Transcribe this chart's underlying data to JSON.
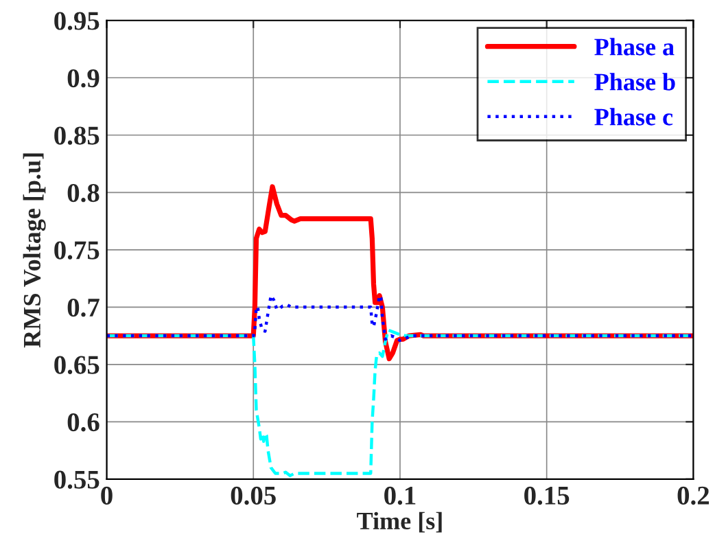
{
  "chart_data": {
    "type": "line",
    "xlabel": "Time [s]",
    "ylabel": "RMS Voltage [p.u]",
    "xlim": [
      0,
      0.2
    ],
    "xticks": [
      0,
      0.05,
      0.1,
      0.15,
      0.2
    ],
    "ylim": [
      0.55,
      0.95
    ],
    "yticks": [
      0.55,
      0.6,
      0.65,
      0.7,
      0.75,
      0.8,
      0.85,
      0.9,
      0.95
    ],
    "grid": true,
    "legend": "top right",
    "series": [
      {
        "name": "Phase a",
        "color": "#ff0000",
        "line_style": "solid",
        "x": [
          0,
          0.05,
          0.0505,
          0.051,
          0.052,
          0.053,
          0.054,
          0.0555,
          0.0565,
          0.058,
          0.0595,
          0.061,
          0.063,
          0.064,
          0.066,
          0.09,
          0.0905,
          0.091,
          0.0915,
          0.0925,
          0.093,
          0.094,
          0.095,
          0.0963,
          0.0975,
          0.099,
          0.1,
          0.101,
          0.103,
          0.107,
          0.108,
          0.2
        ],
        "values": [
          0.675,
          0.675,
          0.7,
          0.76,
          0.768,
          0.765,
          0.766,
          0.79,
          0.805,
          0.79,
          0.78,
          0.78,
          0.776,
          0.775,
          0.777,
          0.777,
          0.76,
          0.72,
          0.704,
          0.704,
          0.71,
          0.7,
          0.67,
          0.655,
          0.66,
          0.671,
          0.672,
          0.672,
          0.675,
          0.676,
          0.675,
          0.675
        ]
      },
      {
        "name": "Phase b",
        "color": "#00ffff",
        "line_style": "dashed",
        "x": [
          0,
          0.05,
          0.0505,
          0.051,
          0.052,
          0.0525,
          0.053,
          0.0535,
          0.054,
          0.0545,
          0.055,
          0.056,
          0.0575,
          0.06,
          0.061,
          0.0625,
          0.064,
          0.09,
          0.0905,
          0.091,
          0.0915,
          0.092,
          0.093,
          0.094,
          0.095,
          0.096,
          0.098,
          0.1,
          0.102,
          0.2
        ],
        "values": [
          0.675,
          0.675,
          0.65,
          0.61,
          0.595,
          0.585,
          0.59,
          0.583,
          0.59,
          0.588,
          0.575,
          0.56,
          0.555,
          0.555,
          0.556,
          0.553,
          0.555,
          0.555,
          0.6,
          0.62,
          0.645,
          0.657,
          0.66,
          0.657,
          0.67,
          0.68,
          0.678,
          0.676,
          0.675,
          0.675
        ]
      },
      {
        "name": "Phase c",
        "color": "#0000ff",
        "line_style": "dotted",
        "x": [
          0,
          0.05,
          0.0505,
          0.051,
          0.0515,
          0.052,
          0.053,
          0.054,
          0.055,
          0.056,
          0.057,
          0.058,
          0.059,
          0.06,
          0.0615,
          0.063,
          0.09,
          0.0905,
          0.091,
          0.092,
          0.093,
          0.0935,
          0.094,
          0.095,
          0.097,
          0.098,
          0.1,
          0.102,
          0.104,
          0.2
        ],
        "values": [
          0.675,
          0.675,
          0.68,
          0.7,
          0.7,
          0.69,
          0.68,
          0.679,
          0.695,
          0.71,
          0.706,
          0.698,
          0.699,
          0.701,
          0.702,
          0.7,
          0.7,
          0.685,
          0.683,
          0.695,
          0.71,
          0.708,
          0.69,
          0.672,
          0.675,
          0.674,
          0.671,
          0.673,
          0.675,
          0.675
        ]
      }
    ]
  }
}
